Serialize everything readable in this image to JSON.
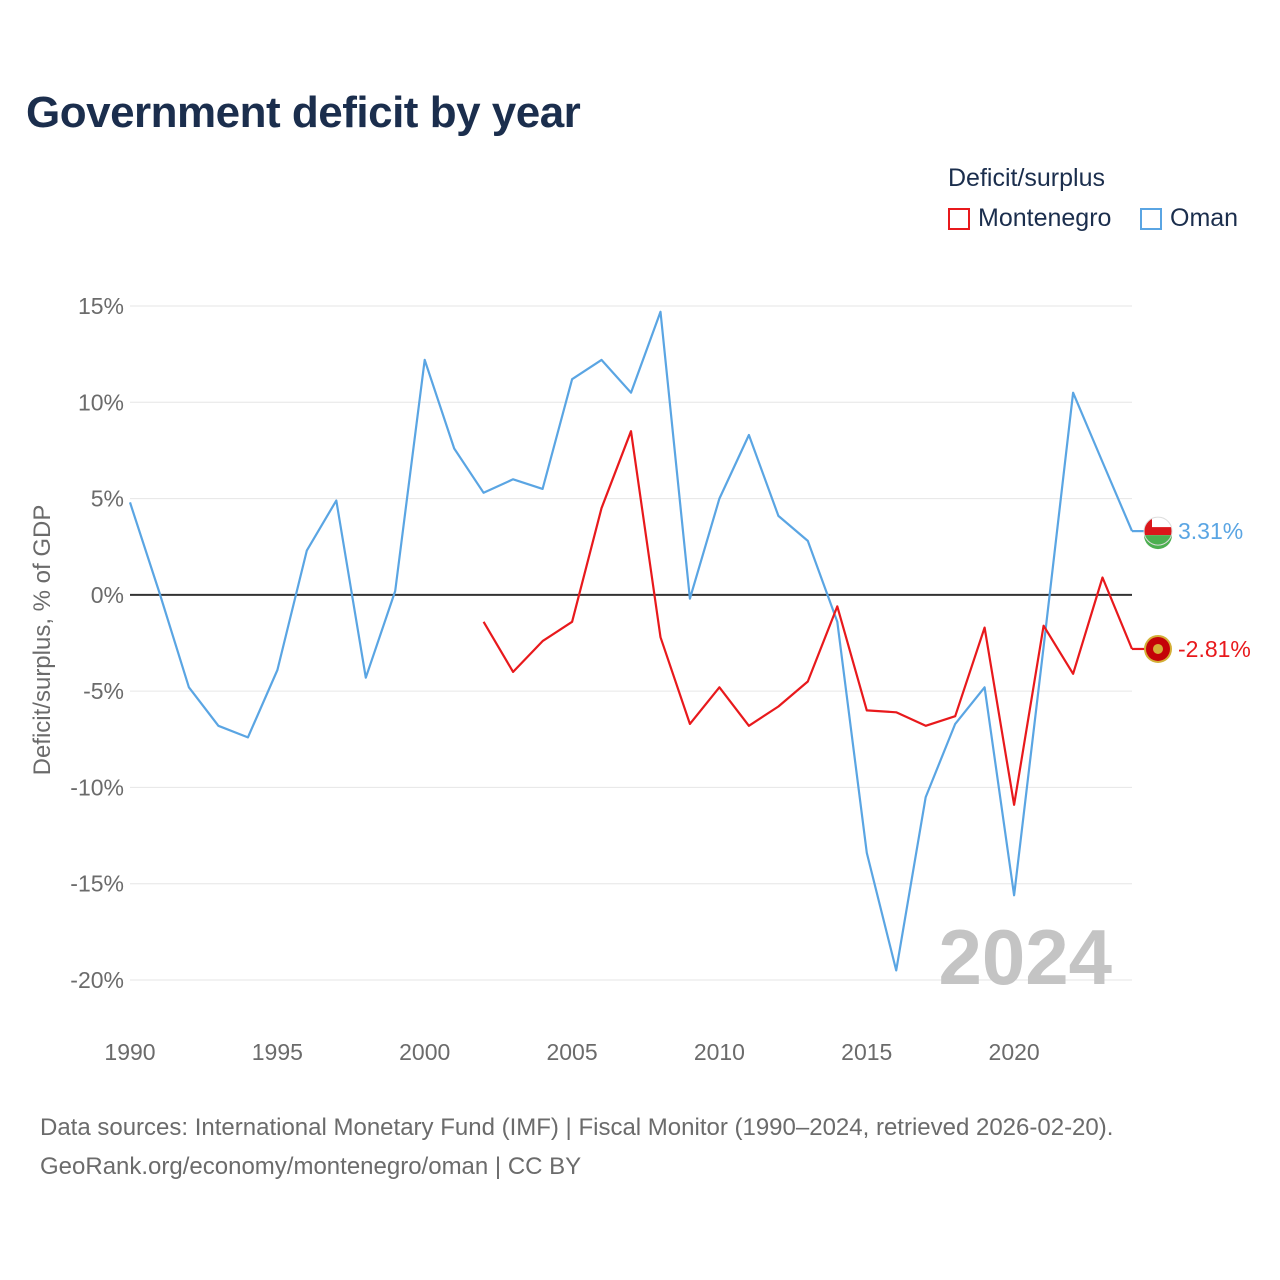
{
  "title": "Government deficit by year",
  "legend": {
    "title": "Deficit/surplus",
    "items": [
      {
        "label": "Montenegro",
        "color": "#e8191c"
      },
      {
        "label": "Oman",
        "color": "#5aa5e3"
      }
    ]
  },
  "source": {
    "line1": "Data sources: International Monetary Fund (IMF) | Fiscal Monitor (1990–2024, retrieved 2026-02-20).",
    "line2": "GeoRank.org/economy/montenegro/oman | CC BY"
  },
  "chart_data": {
    "type": "line",
    "title": "Government deficit by year",
    "ylabel": "Deficit/surplus, % of GDP",
    "xlabel": "",
    "xlim": [
      1990,
      2024
    ],
    "ylim": [
      -21.5,
      16
    ],
    "x_ticks": [
      1990,
      1995,
      2000,
      2005,
      2010,
      2015,
      2020
    ],
    "y_ticks": [
      15,
      10,
      5,
      0,
      -5,
      -10,
      -15,
      -20
    ],
    "y_tick_labels": [
      "15%",
      "10%",
      "5%",
      "0%",
      "-5%",
      "-10%",
      "-15%",
      "-20%"
    ],
    "watermark_year": "2024",
    "series": [
      {
        "name": "Oman",
        "color": "#5aa5e3",
        "end_label": "3.31%",
        "x": [
          1990,
          1991,
          1992,
          1993,
          1994,
          1995,
          1996,
          1997,
          1998,
          1999,
          2000,
          2001,
          2002,
          2003,
          2004,
          2005,
          2006,
          2007,
          2008,
          2009,
          2010,
          2011,
          2012,
          2013,
          2014,
          2015,
          2016,
          2017,
          2018,
          2019,
          2020,
          2021,
          2022,
          2023,
          2024
        ],
        "values": [
          4.8,
          0.1,
          -4.8,
          -6.8,
          -7.4,
          -3.9,
          2.3,
          4.9,
          -4.3,
          0.2,
          12.2,
          7.6,
          5.3,
          6.0,
          5.5,
          11.2,
          12.2,
          10.5,
          14.7,
          -0.2,
          5.0,
          8.3,
          4.1,
          2.8,
          -1.4,
          -13.4,
          -19.5,
          -10.5,
          -6.7,
          -4.8,
          -15.6,
          -2.7,
          10.5,
          6.9,
          3.31
        ]
      },
      {
        "name": "Montenegro",
        "color": "#e8191c",
        "end_label": "-2.81%",
        "x": [
          2002,
          2003,
          2004,
          2005,
          2006,
          2007,
          2008,
          2009,
          2010,
          2011,
          2012,
          2013,
          2014,
          2015,
          2016,
          2017,
          2018,
          2019,
          2020,
          2021,
          2022,
          2023,
          2024
        ],
        "values": [
          -1.4,
          -4.0,
          -2.4,
          -1.4,
          4.5,
          8.5,
          -2.2,
          -6.7,
          -4.8,
          -6.8,
          -5.8,
          -4.5,
          -0.6,
          -6.0,
          -6.1,
          -6.8,
          -6.3,
          -1.7,
          -10.9,
          -1.6,
          -4.1,
          0.9,
          -2.81
        ]
      }
    ]
  }
}
